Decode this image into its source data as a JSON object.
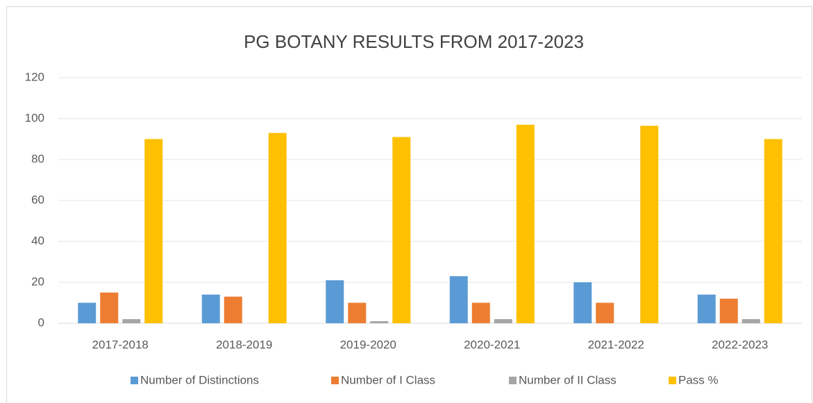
{
  "chart_data": {
    "type": "bar",
    "title": "PG BOTANY RESULTS FROM 2017-2023",
    "categories": [
      "2017-2018",
      "2018-2019",
      "2019-2020",
      "2020-2021",
      "2021-2022",
      "2022-2023"
    ],
    "series": [
      {
        "name": "Number of Distinctions",
        "color": "#5b9bd5",
        "values": [
          10,
          14,
          21,
          23,
          20,
          14
        ]
      },
      {
        "name": "Number of I Class",
        "color": "#ed7d31",
        "values": [
          15,
          13,
          10,
          10,
          10,
          12
        ]
      },
      {
        "name": "Number of II Class",
        "color": "#a5a5a5",
        "values": [
          2,
          0,
          1,
          2,
          0,
          2
        ]
      },
      {
        "name": "Pass %",
        "color": "#ffc000",
        "values": [
          90,
          93,
          91,
          97,
          96.5,
          90
        ]
      }
    ],
    "ylim": [
      0,
      120
    ],
    "yticks": [
      0,
      20,
      40,
      60,
      80,
      100,
      120
    ],
    "grid": true,
    "legend": "bottom"
  }
}
